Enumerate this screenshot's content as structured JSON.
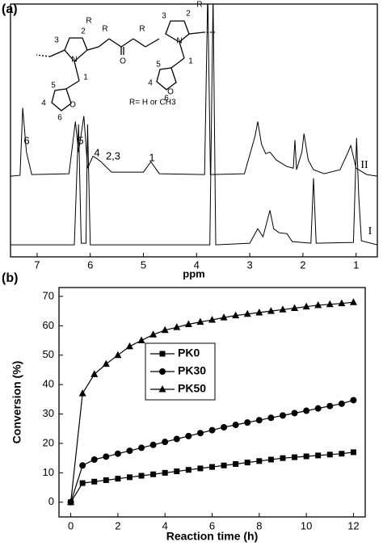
{
  "chart_data": [
    {
      "type": "spectrum",
      "panel": "(a)",
      "xlabel": "ppm",
      "xlim": [
        7.5,
        0.6
      ],
      "xticks": [
        7,
        6,
        5,
        4,
        3,
        2,
        1
      ],
      "ylim": [
        -15,
        300
      ],
      "series": [
        {
          "name": "I",
          "color": "#000000",
          "x": [
            7.5,
            6.3,
            6.22,
            6.17,
            6.08,
            6.05,
            6.0,
            3.75,
            3.69,
            3.64,
            3.0,
            2.85,
            2.75,
            2.62,
            2.55,
            2.45,
            2.3,
            2.2,
            1.85,
            1.8,
            1.75,
            1.05,
            0.99,
            0.95,
            0.9,
            0.6
          ],
          "values": [
            0,
            0,
            150,
            2,
            2,
            150,
            0,
            0,
            310,
            0,
            2,
            20,
            10,
            43,
            20,
            15,
            14,
            4,
            2,
            83,
            2,
            3,
            133,
            60,
            5,
            0
          ]
        },
        {
          "name": "II",
          "color": "#000000",
          "x": [
            7.5,
            7.32,
            7.27,
            7.2,
            7.1,
            6.4,
            6.28,
            6.22,
            6.12,
            6.05,
            5.95,
            5.88,
            5.8,
            5.6,
            5.0,
            4.86,
            4.7,
            3.85,
            3.79,
            3.74,
            3.1,
            2.9,
            2.85,
            2.78,
            2.7,
            2.62,
            2.5,
            2.3,
            2.18,
            2.15,
            2.12,
            2.02,
            1.98,
            1.9,
            1.8,
            1.6,
            1.3,
            1.15,
            1.1,
            1.0,
            0.8,
            0.6
          ],
          "values": [
            0,
            1,
            85,
            30,
            2,
            3,
            68,
            30,
            75,
            10,
            25,
            22,
            18,
            5,
            5,
            18,
            3,
            2,
            230,
            2,
            3,
            50,
            68,
            40,
            28,
            30,
            20,
            12,
            10,
            45,
            8,
            30,
            53,
            20,
            8,
            3,
            8,
            30,
            38,
            10,
            2,
            0
          ]
        }
      ],
      "peak_labels": [
        "6",
        "5",
        "4",
        "2,3",
        "1"
      ],
      "structure_labels": [
        "3",
        "2",
        "R",
        "N",
        "1",
        "5",
        "4",
        "O",
        "6",
        "R",
        "O",
        "R",
        "3",
        "2",
        "R",
        "N",
        "1",
        "5",
        "4",
        "O",
        "6",
        "R= H or CH3"
      ]
    },
    {
      "type": "line",
      "panel": "(b)",
      "xlabel": "Reaction time (h)",
      "ylabel": "Conversion (%)",
      "xlim": [
        -0.5,
        12.5
      ],
      "xticks": [
        0,
        2,
        4,
        6,
        8,
        10,
        12
      ],
      "ylim": [
        -5,
        73
      ],
      "yticks": [
        0,
        10,
        20,
        30,
        40,
        50,
        60,
        70
      ],
      "legend": "center-left",
      "x": [
        0,
        0.5,
        1,
        1.5,
        2,
        2.5,
        3,
        3.5,
        4,
        4.5,
        5,
        5.5,
        6,
        6.5,
        7,
        7.5,
        8,
        8.5,
        9,
        9.5,
        10,
        10.5,
        11,
        11.5,
        12
      ],
      "series": [
        {
          "name": "PK0",
          "color": "#000000",
          "marker": "square",
          "values": [
            0,
            6.5,
            7,
            7.5,
            8,
            8.5,
            9,
            9.5,
            10,
            10.5,
            11,
            11.5,
            12,
            12.5,
            13,
            13.5,
            14,
            14.5,
            15,
            15.3,
            15.6,
            15.9,
            16.2,
            16.5,
            17
          ]
        },
        {
          "name": "PK30",
          "color": "#000000",
          "marker": "circle",
          "values": [
            0,
            12.5,
            14.5,
            15.5,
            16.5,
            17.5,
            18.5,
            19.5,
            20.5,
            21.5,
            22.5,
            23.5,
            24.5,
            25.5,
            26.3,
            27.1,
            27.9,
            28.7,
            29.5,
            30.3,
            31.1,
            31.9,
            32.7,
            33.5,
            34.7
          ]
        },
        {
          "name": "PK50",
          "color": "#000000",
          "marker": "triangle",
          "values": [
            0,
            37,
            43.5,
            47,
            50,
            53,
            55,
            57,
            58.5,
            59.5,
            60.5,
            61.3,
            62,
            62.8,
            63.5,
            64,
            64.5,
            65,
            65.5,
            66,
            66.5,
            67,
            67.3,
            67.6,
            68
          ]
        }
      ]
    }
  ]
}
